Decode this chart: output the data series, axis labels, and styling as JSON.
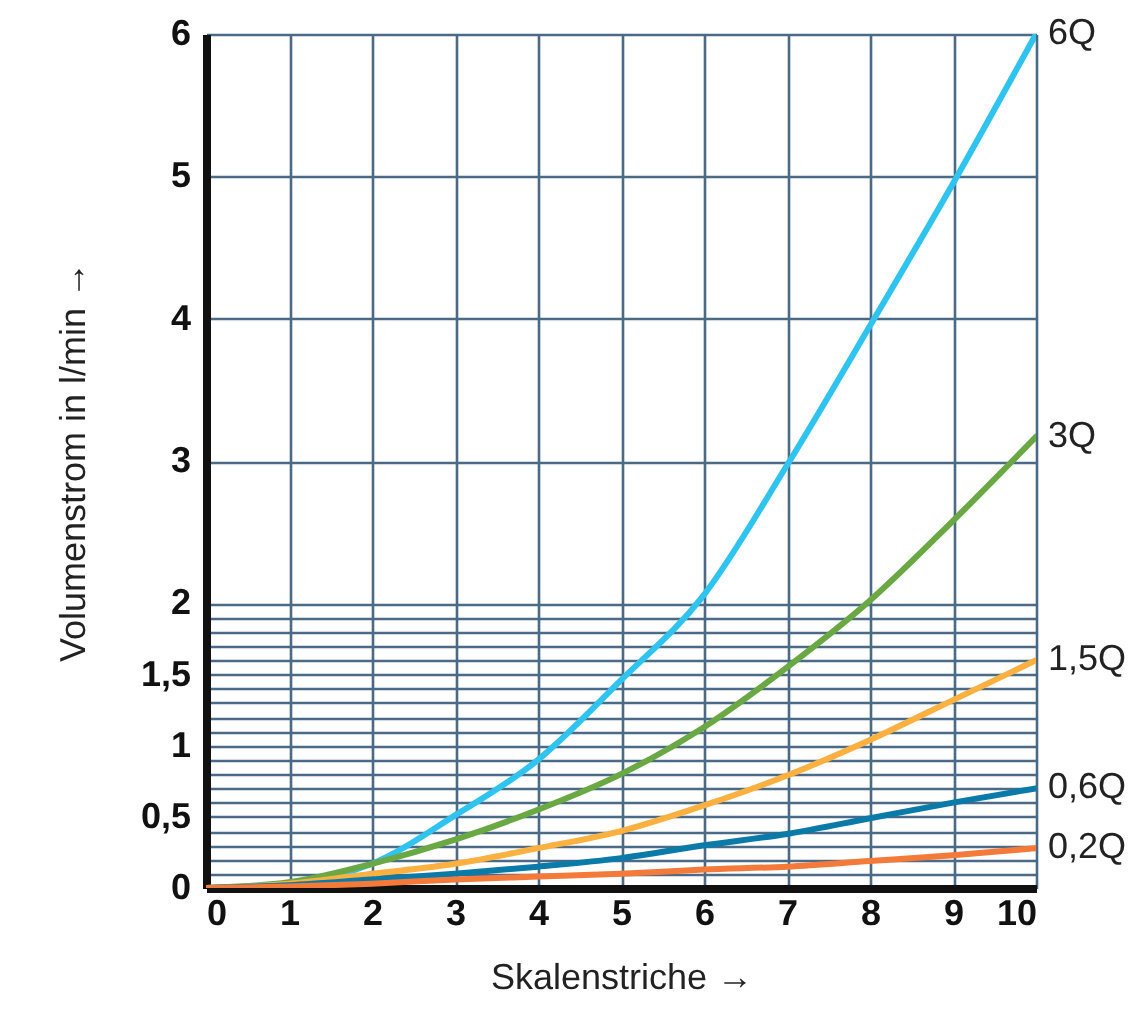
{
  "chart_data": {
    "type": "line",
    "xlabel": "Skalenstriche →",
    "ylabel": "Volumenstrom in l/min →",
    "x": [
      0,
      1,
      2,
      3,
      4,
      5,
      6,
      7,
      8,
      9,
      10
    ],
    "series": [
      {
        "name": "6Q",
        "color": "#2fc4f0",
        "values": [
          0,
          0.03,
          0.17,
          0.51,
          0.9,
          1.46,
          2.06,
          2.97,
          3.95,
          4.95,
          6
        ]
      },
      {
        "name": "3Q",
        "color": "#69a842",
        "values": [
          0,
          0.04,
          0.17,
          0.34,
          0.55,
          0.8,
          1.13,
          1.55,
          2.02,
          2.58,
          3.17
        ]
      },
      {
        "name": "1,5Q",
        "color": "#fbb040",
        "values": [
          0,
          0.03,
          0.1,
          0.17,
          0.28,
          0.4,
          0.58,
          0.79,
          1.04,
          1.32,
          1.6
        ]
      },
      {
        "name": "0,6Q",
        "color": "#0a7aa8",
        "values": [
          0,
          0.02,
          0.06,
          0.1,
          0.15,
          0.21,
          0.3,
          0.38,
          0.49,
          0.6,
          0.7
        ]
      },
      {
        "name": "0,2Q",
        "color": "#f47a3a",
        "values": [
          0,
          0.01,
          0.03,
          0.06,
          0.08,
          0.1,
          0.13,
          0.15,
          0.19,
          0.23,
          0.28
        ]
      }
    ],
    "xlim": [
      0,
      10
    ],
    "xticks": [
      0,
      1,
      2,
      3,
      4,
      5,
      6,
      7,
      8,
      9,
      10
    ],
    "ylim": [
      0,
      6
    ],
    "yticks": [
      0,
      {
        "value": 0.1,
        "label": null
      },
      {
        "value": 0.2,
        "label": null
      },
      {
        "value": 0.3,
        "label": null
      },
      {
        "value": 0.4,
        "label": null
      },
      {
        "value": 0.5,
        "label": "0,5"
      },
      {
        "value": 0.6,
        "label": null
      },
      {
        "value": 0.7,
        "label": null
      },
      {
        "value": 0.8,
        "label": null
      },
      {
        "value": 0.9,
        "label": null
      },
      1,
      {
        "value": 1.1,
        "label": null
      },
      {
        "value": 1.2,
        "label": null
      },
      {
        "value": 1.3,
        "label": null
      },
      {
        "value": 1.4,
        "label": null
      },
      {
        "value": 1.5,
        "label": "1,5"
      },
      {
        "value": 1.6,
        "label": null
      },
      {
        "value": 1.7,
        "label": null
      },
      {
        "value": 1.8,
        "label": null
      },
      {
        "value": 1.9,
        "label": null
      },
      2,
      3,
      4,
      5,
      6
    ],
    "grid": true
  }
}
